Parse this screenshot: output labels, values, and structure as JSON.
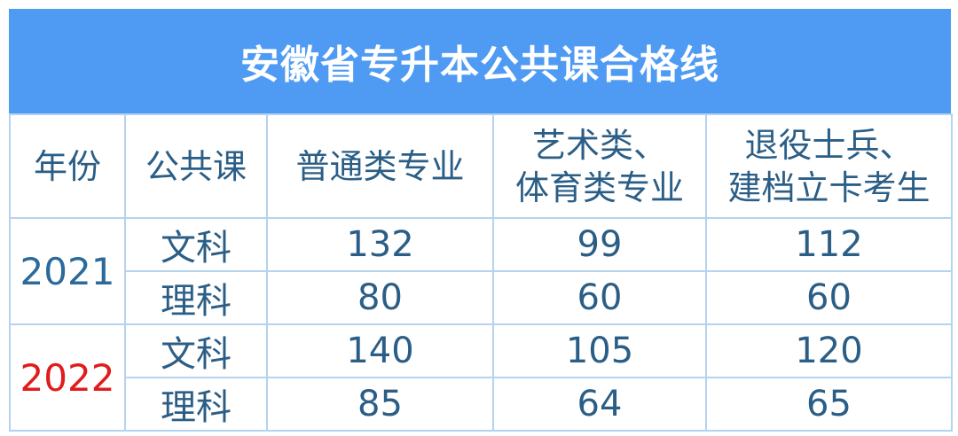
{
  "header": {
    "title": "安徽省专升本公共课合格线"
  },
  "table": {
    "columns": [
      [
        "年份"
      ],
      [
        "公共课"
      ],
      [
        "普通类专业"
      ],
      [
        "艺术类、",
        "体育类专业"
      ],
      [
        "退役士兵、",
        "建档立卡考生"
      ]
    ],
    "groups": [
      {
        "year": "2021",
        "year_color": "#2b6a9a",
        "rows": [
          [
            "文科",
            132,
            99,
            112
          ],
          [
            "理科",
            80,
            60,
            60
          ]
        ]
      },
      {
        "year": "2022",
        "year_color": "#e01c1c",
        "rows": [
          [
            "文科",
            140,
            105,
            120
          ],
          [
            "理科",
            85,
            64,
            65
          ]
        ]
      }
    ]
  }
}
